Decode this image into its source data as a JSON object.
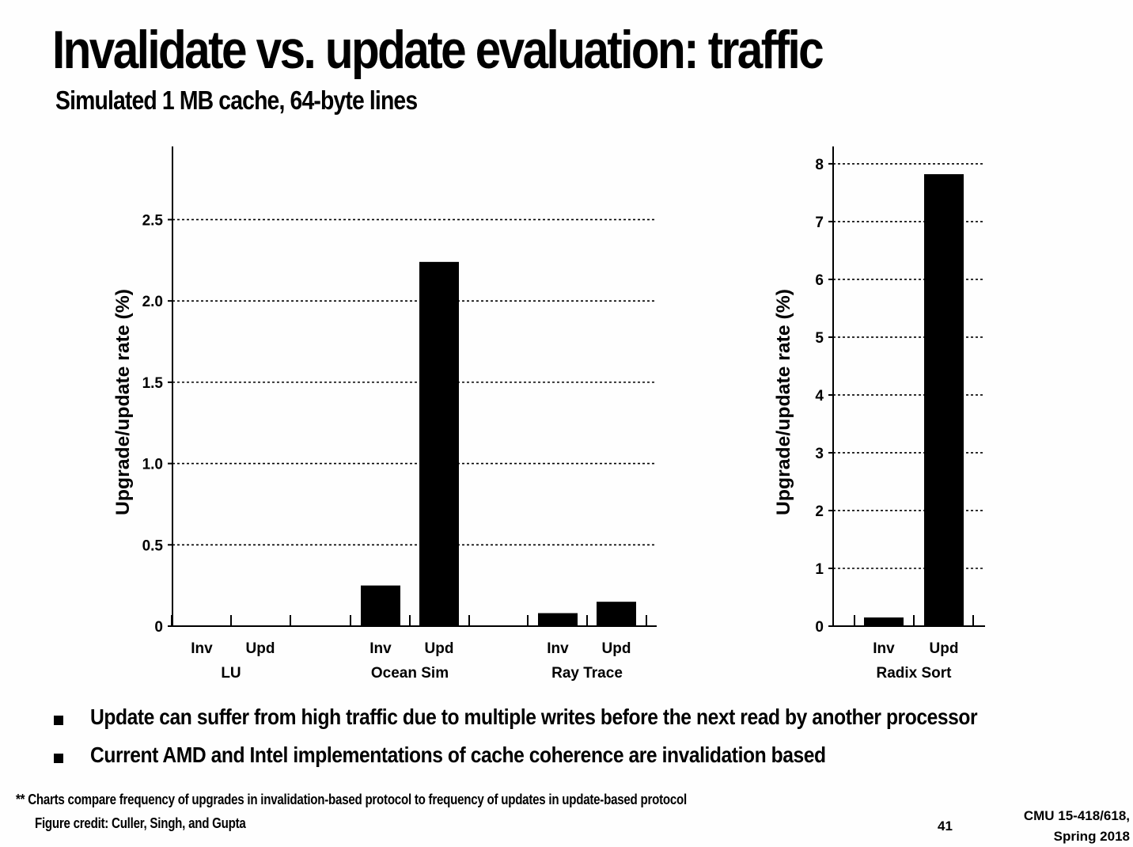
{
  "slide": {
    "title": "Invalidate vs. update evaluation: traffic",
    "subtitle": "Simulated 1 MB cache, 64-byte lines",
    "bullets": [
      "Update can suffer from high traffic due to multiple writes before the next read by another processor",
      "Current AMD and Intel implementations of cache coherence are invalidation based"
    ],
    "footnote": "** Charts compare frequency of upgrades in invalidation-based protocol to frequency of updates in update-based protocol",
    "credit": "Figure credit: Culler, Singh, and Gupta",
    "page_number": "41",
    "course_line1": "CMU 15-418/618,",
    "course_line2": "Spring 2018"
  },
  "chart_data": [
    {
      "type": "bar",
      "ylabel": "Upgrade/update rate (%)",
      "ylim": [
        0,
        2.95
      ],
      "yticks": [
        0,
        0.5,
        1.0,
        1.5,
        2.0,
        2.5
      ],
      "ytick_labels": [
        "0",
        "0.5",
        "1.0",
        "1.5",
        "2.0",
        "2.5"
      ],
      "grid": "dotted horizontal",
      "groups": [
        {
          "name": "LU",
          "categories": [
            "Inv",
            "Upd"
          ],
          "values": [
            0.005,
            0.003
          ]
        },
        {
          "name": "Ocean Sim",
          "categories": [
            "Inv",
            "Upd"
          ],
          "values": [
            0.25,
            2.24
          ]
        },
        {
          "name": "Ray Trace",
          "categories": [
            "Inv",
            "Upd"
          ],
          "values": [
            0.08,
            0.15
          ]
        }
      ]
    },
    {
      "type": "bar",
      "ylabel": "Upgrade/update rate (%)",
      "ylim": [
        0,
        8.3
      ],
      "yticks": [
        0,
        1,
        2,
        3,
        4,
        5,
        6,
        7,
        8
      ],
      "ytick_labels": [
        "0",
        "1",
        "2",
        "3",
        "4",
        "5",
        "6",
        "7",
        "8"
      ],
      "grid": "dotted horizontal",
      "groups": [
        {
          "name": "Radix Sort",
          "categories": [
            "Inv",
            "Upd"
          ],
          "values": [
            0.15,
            7.82
          ]
        }
      ]
    }
  ]
}
